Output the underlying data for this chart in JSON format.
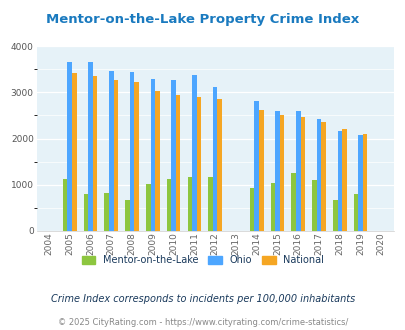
{
  "title": "Mentor-on-the-Lake Property Crime Index",
  "years": [
    2004,
    2005,
    2006,
    2007,
    2008,
    2009,
    2010,
    2011,
    2012,
    2013,
    2014,
    2015,
    2016,
    2017,
    2018,
    2019,
    2020
  ],
  "mentor": [
    0,
    1120,
    800,
    820,
    670,
    1020,
    1120,
    1160,
    1160,
    0,
    920,
    1030,
    1260,
    1110,
    670,
    800,
    0
  ],
  "ohio": [
    0,
    3660,
    3660,
    3470,
    3450,
    3300,
    3270,
    3370,
    3110,
    0,
    2810,
    2600,
    2590,
    2430,
    2170,
    2080,
    0
  ],
  "national": [
    0,
    3420,
    3360,
    3270,
    3220,
    3040,
    2940,
    2910,
    2860,
    0,
    2620,
    2500,
    2460,
    2360,
    2200,
    2090,
    0
  ],
  "bar_width": 0.22,
  "ylim": [
    0,
    4000
  ],
  "yticks": [
    0,
    1000,
    2000,
    3000,
    4000
  ],
  "color_mentor": "#8dc63f",
  "color_ohio": "#4da6ff",
  "color_national": "#f5a623",
  "color_title": "#1a7abf",
  "color_bg": "#e6f2f8",
  "color_subtitle": "#1a3a5c",
  "color_footer": "#888888",
  "legend_labels": [
    "Mentor-on-the-Lake",
    "Ohio",
    "National"
  ],
  "subtitle": "Crime Index corresponds to incidents per 100,000 inhabitants",
  "footer": "© 2025 CityRating.com - https://www.cityrating.com/crime-statistics/"
}
